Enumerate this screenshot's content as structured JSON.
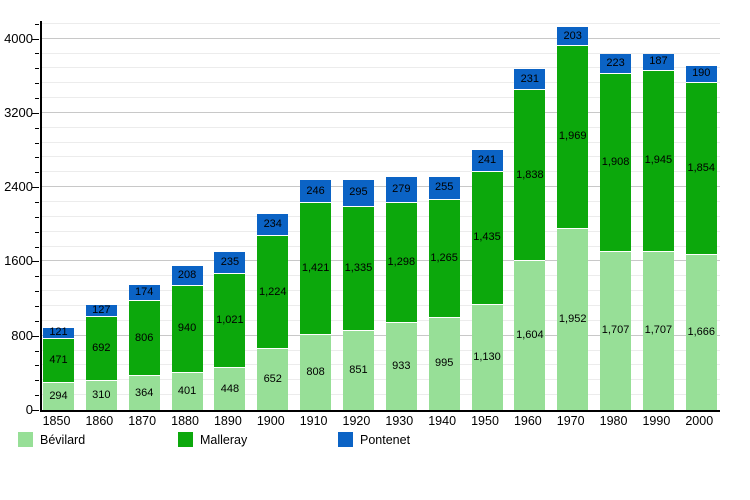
{
  "chart_data": {
    "type": "bar",
    "stacked": true,
    "title": "",
    "xlabel": "",
    "ylabel": "",
    "grid": true,
    "legend_position": "bottom",
    "categories": [
      "1850",
      "1860",
      "1870",
      "1880",
      "1890",
      "1900",
      "1910",
      "1920",
      "1930",
      "1940",
      "1950",
      "1960",
      "1970",
      "1980",
      "1990",
      "2000"
    ],
    "series": [
      {
        "name": "Bévilard",
        "color": "#97df97",
        "values": [
          294,
          310,
          364,
          401,
          448,
          652,
          808,
          851,
          933,
          995,
          1130,
          1604,
          1952,
          1707,
          1707,
          1666
        ]
      },
      {
        "name": "Malleray",
        "color": "#0ca80c",
        "values": [
          471,
          692,
          806,
          940,
          1021,
          1224,
          1421,
          1335,
          1298,
          1265,
          1435,
          1838,
          1969,
          1908,
          1945,
          1854
        ]
      },
      {
        "name": "Pontenet",
        "color": "#0b63c5",
        "values": [
          121,
          127,
          174,
          208,
          235,
          234,
          246,
          295,
          279,
          255,
          241,
          231,
          203,
          223,
          187,
          190
        ]
      }
    ],
    "yticks": [
      0,
      800,
      1600,
      2400,
      3200,
      4000
    ],
    "ytick_labels": [
      "0",
      "800",
      "1600",
      "2400",
      "3200",
      "4000"
    ],
    "ylim": [
      0,
      4190
    ],
    "major_step": 800,
    "minor_step": 160,
    "colors": {
      "axis": "#000000",
      "major_gridline": "#c8c8c8",
      "minor_gridline": "#ececec",
      "background": "#ffffff",
      "segment_separator": "#ffffff"
    }
  }
}
